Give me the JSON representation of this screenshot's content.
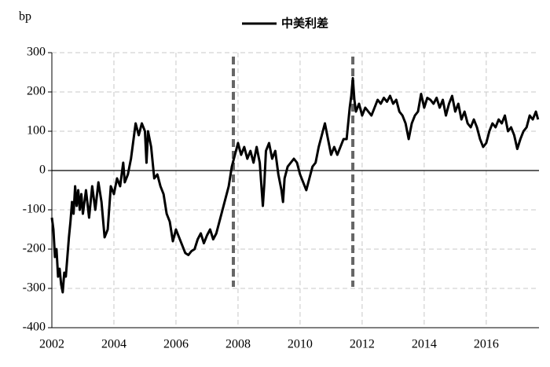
{
  "chart_data": {
    "type": "line",
    "y_label": "bp",
    "x": [
      2002.0,
      2002.05,
      2002.1,
      2002.15,
      2002.2,
      2002.25,
      2002.3,
      2002.35,
      2002.4,
      2002.45,
      2002.5,
      2002.55,
      2002.6,
      2002.65,
      2002.7,
      2002.75,
      2002.8,
      2002.85,
      2002.9,
      2002.95,
      2003.0,
      2003.1,
      2003.2,
      2003.3,
      2003.4,
      2003.5,
      2003.6,
      2003.7,
      2003.8,
      2003.9,
      2004.0,
      2004.1,
      2004.2,
      2004.3,
      2004.35,
      2004.45,
      2004.55,
      2004.6,
      2004.7,
      2004.8,
      2004.9,
      2005.0,
      2005.05,
      2005.1,
      2005.2,
      2005.3,
      2005.4,
      2005.5,
      2005.6,
      2005.7,
      2005.8,
      2005.9,
      2006.0,
      2006.1,
      2006.2,
      2006.3,
      2006.4,
      2006.5,
      2006.6,
      2006.7,
      2006.8,
      2006.9,
      2007.0,
      2007.1,
      2007.2,
      2007.3,
      2007.4,
      2007.5,
      2007.6,
      2007.7,
      2007.8,
      2007.9,
      2008.0,
      2008.1,
      2008.2,
      2008.3,
      2008.4,
      2008.5,
      2008.6,
      2008.65,
      2008.7,
      2008.8,
      2008.85,
      2008.9,
      2009.0,
      2009.1,
      2009.2,
      2009.3,
      2009.4,
      2009.45,
      2009.5,
      2009.6,
      2009.7,
      2009.8,
      2009.9,
      2010.0,
      2010.1,
      2010.2,
      2010.3,
      2010.4,
      2010.5,
      2010.6,
      2010.7,
      2010.8,
      2010.9,
      2011.0,
      2011.1,
      2011.2,
      2011.3,
      2011.4,
      2011.5,
      2011.6,
      2011.65,
      2011.7,
      2011.75,
      2011.8,
      2011.9,
      2012.0,
      2012.1,
      2012.2,
      2012.3,
      2012.4,
      2012.5,
      2012.6,
      2012.7,
      2012.8,
      2012.9,
      2013.0,
      2013.1,
      2013.2,
      2013.3,
      2013.4,
      2013.5,
      2013.6,
      2013.7,
      2013.8,
      2013.9,
      2014.0,
      2014.1,
      2014.2,
      2014.3,
      2014.4,
      2014.5,
      2014.6,
      2014.7,
      2014.8,
      2014.9,
      2015.0,
      2015.1,
      2015.2,
      2015.3,
      2015.4,
      2015.5,
      2015.6,
      2015.7,
      2015.8,
      2015.9,
      2016.0,
      2016.1,
      2016.2,
      2016.3,
      2016.4,
      2016.5,
      2016.6,
      2016.7,
      2016.8,
      2016.9,
      2017.0,
      2017.1,
      2017.2,
      2017.3,
      2017.4,
      2017.5,
      2017.6,
      2017.67
    ],
    "series": [
      {
        "name": "中美利差",
        "color": "#000000",
        "values": [
          -120,
          -150,
          -220,
          -200,
          -270,
          -250,
          -290,
          -310,
          -260,
          -270,
          -220,
          -170,
          -130,
          -80,
          -110,
          -40,
          -90,
          -50,
          -100,
          -60,
          -110,
          -50,
          -120,
          -40,
          -100,
          -30,
          -80,
          -170,
          -150,
          -40,
          -60,
          -20,
          -40,
          20,
          -30,
          -10,
          30,
          60,
          120,
          90,
          120,
          100,
          20,
          100,
          60,
          -20,
          -10,
          -40,
          -60,
          -110,
          -130,
          -180,
          -150,
          -170,
          -190,
          -210,
          -215,
          -205,
          -200,
          -175,
          -160,
          -185,
          -165,
          -150,
          -175,
          -160,
          -130,
          -100,
          -70,
          -40,
          10,
          40,
          70,
          40,
          60,
          30,
          50,
          20,
          60,
          40,
          20,
          -90,
          -30,
          50,
          70,
          30,
          50,
          -10,
          -50,
          -80,
          -20,
          10,
          20,
          30,
          20,
          -10,
          -30,
          -50,
          -20,
          10,
          20,
          60,
          90,
          120,
          80,
          40,
          60,
          40,
          60,
          80,
          80,
          160,
          190,
          235,
          180,
          150,
          170,
          140,
          160,
          150,
          140,
          160,
          180,
          170,
          185,
          175,
          190,
          170,
          180,
          150,
          140,
          120,
          80,
          120,
          140,
          150,
          195,
          160,
          185,
          180,
          170,
          185,
          160,
          180,
          140,
          170,
          190,
          150,
          170,
          130,
          150,
          120,
          110,
          130,
          110,
          80,
          60,
          70,
          100,
          120,
          110,
          130,
          120,
          140,
          100,
          110,
          90,
          55,
          80,
          100,
          110,
          140,
          130,
          150,
          130
        ]
      }
    ],
    "xlim": [
      2002,
      2017.7
    ],
    "xticks": [
      2002,
      2004,
      2006,
      2008,
      2010,
      2012,
      2014,
      2016
    ],
    "ylim": [
      -400,
      300
    ],
    "yticks": [
      -400,
      -300,
      -200,
      -100,
      0,
      100,
      200,
      300
    ],
    "grid": true,
    "vlines": [
      2007.85,
      2011.7
    ]
  }
}
